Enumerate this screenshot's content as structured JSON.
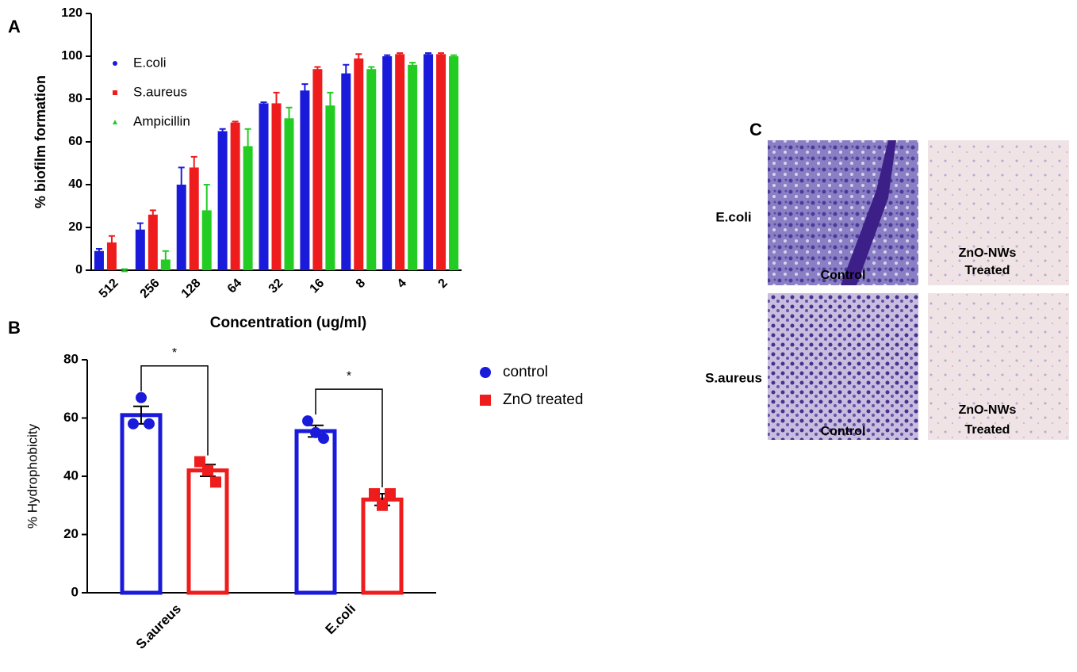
{
  "chart_data": [
    {
      "type": "bar",
      "panel": "A",
      "xlabel": "Concentration (ug/ml)",
      "ylabel": "% biofilm formation",
      "categories": [
        "512",
        "256",
        "128",
        "64",
        "32",
        "16",
        "8",
        "4",
        "2"
      ],
      "series": [
        {
          "name": "E.coli",
          "color": "#1a1adb",
          "values": [
            9,
            19,
            40,
            65,
            78,
            84,
            92,
            100,
            101
          ],
          "errors": [
            1,
            3,
            8,
            1,
            0.5,
            3,
            4,
            0.5,
            0.5
          ]
        },
        {
          "name": "S.aureus",
          "color": "#ee1c1c",
          "values": [
            13,
            26,
            48,
            69,
            78,
            94,
            99,
            101,
            101
          ],
          "errors": [
            3,
            2,
            5,
            0.5,
            5,
            1,
            2,
            0.5,
            0.5
          ]
        },
        {
          "name": "Ampicillin",
          "color": "#22cc22",
          "values": [
            0,
            5,
            28,
            58,
            71,
            77,
            94,
            96,
            100
          ],
          "errors": [
            0.5,
            4,
            12,
            8,
            5,
            6,
            1,
            1,
            0.5
          ]
        }
      ],
      "ylim": [
        0,
        120
      ],
      "yticks": [
        0,
        20,
        40,
        60,
        80,
        100,
        120
      ],
      "legend": "upper-left"
    },
    {
      "type": "bar",
      "panel": "B",
      "ylabel": "% Hydrophobicity",
      "categories": [
        "S.aureus",
        "E.coli"
      ],
      "series": [
        {
          "name": "control",
          "color": "#1a1adb",
          "values": [
            61,
            55.5
          ],
          "errors": [
            3,
            2
          ],
          "points": [
            [
              58,
              67,
              58
            ],
            [
              59,
              55,
              53
            ]
          ]
        },
        {
          "name": "ZnO treated",
          "color": "#ee1c1c",
          "values": [
            42,
            32
          ],
          "errors": [
            2,
            2
          ],
          "points": [
            [
              45,
              42,
              38
            ],
            [
              34,
              30,
              34
            ]
          ]
        }
      ],
      "ylim": [
        0,
        80
      ],
      "yticks": [
        0,
        20,
        40,
        60,
        80
      ],
      "annotations": [
        "*",
        "*"
      ],
      "legend": "right"
    }
  ],
  "image_panel": {
    "panel": "C",
    "rows": [
      "E.coli",
      "S.aureus"
    ],
    "cells": [
      [
        [
          "Control"
        ],
        [
          "ZnO-NWs",
          "Treated"
        ]
      ],
      [
        [
          "Control"
        ],
        [
          "ZnO-NWs",
          "Treated"
        ]
      ]
    ]
  }
}
